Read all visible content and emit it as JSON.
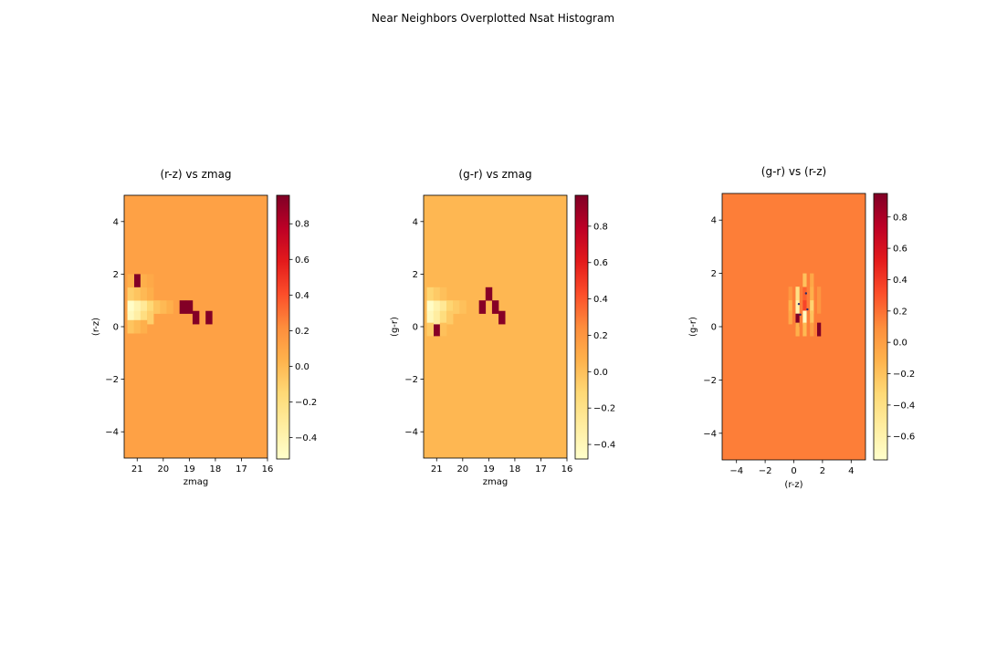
{
  "figure": {
    "suptitle": "Near Neighbors Overplotted Nsat Histogram"
  },
  "chart_data": [
    {
      "type": "heatmap",
      "title": "(r-z) vs zmag",
      "xlabel": "zmag",
      "ylabel": "(r-z)",
      "xlim": [
        21.5,
        16
      ],
      "ylim": [
        -5,
        5
      ],
      "xticks": [
        21,
        20,
        19,
        18,
        17,
        16
      ],
      "yticks": [
        -4,
        -2,
        0,
        2,
        4
      ],
      "grid": false,
      "colormap": "YlOrRd",
      "colorbar": {
        "min": -0.52,
        "max": 0.96,
        "ticks": [
          -0.4,
          -0.2,
          0.0,
          0.2,
          0.4,
          0.6,
          0.8
        ]
      },
      "background_value": 0.12,
      "cells": [
        {
          "x": 21.0,
          "y": 1.75,
          "v": 0.95
        },
        {
          "x": 19.25,
          "y": 0.75,
          "v": 0.95
        },
        {
          "x": 19.0,
          "y": 0.75,
          "v": 0.95
        },
        {
          "x": 18.75,
          "y": 0.35,
          "v": 0.95
        },
        {
          "x": 18.25,
          "y": 0.35,
          "v": 0.95
        },
        {
          "x": 21.25,
          "y": 0.75,
          "v": -0.5
        },
        {
          "x": 21.25,
          "y": 0.35,
          "v": -0.45
        },
        {
          "x": 21.0,
          "y": 0.75,
          "v": -0.4
        },
        {
          "x": 21.0,
          "y": 0.35,
          "v": -0.35
        },
        {
          "x": 20.75,
          "y": 0.75,
          "v": -0.3
        },
        {
          "x": 20.75,
          "y": 0.35,
          "v": -0.2
        },
        {
          "x": 20.5,
          "y": 0.75,
          "v": -0.15
        },
        {
          "x": 20.5,
          "y": 0.35,
          "v": -0.1
        },
        {
          "x": 20.25,
          "y": 0.75,
          "v": -0.05
        },
        {
          "x": 20.0,
          "y": 0.75,
          "v": 0.0
        },
        {
          "x": 19.75,
          "y": 0.75,
          "v": 0.05
        },
        {
          "x": 21.25,
          "y": 1.25,
          "v": -0.1
        },
        {
          "x": 21.0,
          "y": 1.25,
          "v": -0.05
        },
        {
          "x": 20.75,
          "y": 1.25,
          "v": 0.0
        },
        {
          "x": 20.5,
          "y": 1.25,
          "v": 0.05
        },
        {
          "x": 21.25,
          "y": 0.0,
          "v": -0.05
        },
        {
          "x": 21.0,
          "y": 0.0,
          "v": 0.0
        },
        {
          "x": 20.75,
          "y": 0.0,
          "v": 0.05
        },
        {
          "x": 21.25,
          "y": 1.75,
          "v": 0.05
        },
        {
          "x": 20.75,
          "y": 1.75,
          "v": 0.05
        },
        {
          "x": 20.5,
          "y": 1.75,
          "v": 0.08
        }
      ]
    },
    {
      "type": "heatmap",
      "title": "(g-r) vs zmag",
      "xlabel": "zmag",
      "ylabel": "(g-r)",
      "xlim": [
        21.5,
        16
      ],
      "ylim": [
        -5,
        5
      ],
      "xticks": [
        21,
        20,
        19,
        18,
        17,
        16
      ],
      "yticks": [
        -4,
        -2,
        0,
        2,
        4
      ],
      "grid": false,
      "colormap": "YlOrRd",
      "colorbar": {
        "min": -0.48,
        "max": 0.97,
        "ticks": [
          -0.4,
          -0.2,
          0.0,
          0.2,
          0.4,
          0.6,
          0.8
        ]
      },
      "background_value": 0.04,
      "cells": [
        {
          "x": 19.0,
          "y": 1.25,
          "v": 0.95
        },
        {
          "x": 19.25,
          "y": 0.75,
          "v": 0.95
        },
        {
          "x": 18.75,
          "y": 0.75,
          "v": 0.95
        },
        {
          "x": 18.5,
          "y": 0.35,
          "v": 0.95
        },
        {
          "x": 21.0,
          "y": -0.1,
          "v": 0.95
        },
        {
          "x": 21.25,
          "y": 0.75,
          "v": -0.45
        },
        {
          "x": 21.25,
          "y": 0.35,
          "v": -0.4
        },
        {
          "x": 21.0,
          "y": 0.75,
          "v": -0.35
        },
        {
          "x": 21.0,
          "y": 0.35,
          "v": -0.3
        },
        {
          "x": 20.75,
          "y": 0.75,
          "v": -0.25
        },
        {
          "x": 20.75,
          "y": 0.35,
          "v": -0.15
        },
        {
          "x": 20.5,
          "y": 0.75,
          "v": -0.1
        },
        {
          "x": 20.5,
          "y": 0.35,
          "v": -0.05
        },
        {
          "x": 20.25,
          "y": 0.75,
          "v": -0.05
        },
        {
          "x": 20.0,
          "y": 0.75,
          "v": 0.0
        },
        {
          "x": 21.25,
          "y": 1.25,
          "v": -0.1
        },
        {
          "x": 21.0,
          "y": 1.25,
          "v": -0.05
        },
        {
          "x": 20.75,
          "y": 1.25,
          "v": 0.0
        },
        {
          "x": 21.25,
          "y": -0.1,
          "v": -0.05
        },
        {
          "x": 20.75,
          "y": -0.1,
          "v": 0.0
        }
      ]
    },
    {
      "type": "heatmap",
      "title": "(g-r) vs (r-z)",
      "xlabel": "(r-z)",
      "ylabel": "(g-r)",
      "xlim": [
        -5,
        5
      ],
      "ylim": [
        -5,
        5
      ],
      "xticks": [
        -4,
        -2,
        0,
        2,
        4
      ],
      "yticks": [
        -4,
        -2,
        0,
        2,
        4
      ],
      "grid": false,
      "colormap": "YlOrRd",
      "colorbar": {
        "min": -0.75,
        "max": 0.95,
        "ticks": [
          -0.6,
          -0.4,
          -0.2,
          0.0,
          0.2,
          0.4,
          0.6,
          0.8
        ]
      },
      "background_value": 0.15,
      "cells": [
        {
          "x": 0.25,
          "y": 0.25,
          "v": 0.95
        },
        {
          "x": 1.75,
          "y": -0.1,
          "v": 0.95
        },
        {
          "x": 0.75,
          "y": 0.75,
          "v": 0.35
        },
        {
          "x": 0.75,
          "y": 1.25,
          "v": 0.25
        },
        {
          "x": 0.25,
          "y": 0.75,
          "v": -0.6
        },
        {
          "x": 0.75,
          "y": 0.35,
          "v": -0.7
        },
        {
          "x": 1.25,
          "y": 0.75,
          "v": -0.3
        },
        {
          "x": 1.25,
          "y": 0.35,
          "v": -0.2
        },
        {
          "x": 0.25,
          "y": 1.25,
          "v": -0.4
        },
        {
          "x": 1.25,
          "y": 1.25,
          "v": -0.1
        },
        {
          "x": 0.75,
          "y": 1.75,
          "v": -0.2
        },
        {
          "x": 1.25,
          "y": 1.75,
          "v": -0.05
        },
        {
          "x": -0.25,
          "y": 0.75,
          "v": -0.1
        },
        {
          "x": -0.25,
          "y": 0.35,
          "v": -0.05
        },
        {
          "x": 0.25,
          "y": -0.1,
          "v": -0.1
        },
        {
          "x": 0.75,
          "y": -0.1,
          "v": -0.15
        },
        {
          "x": 1.25,
          "y": -0.1,
          "v": 0.0
        },
        {
          "x": 1.75,
          "y": 0.75,
          "v": 0.05
        },
        {
          "x": 1.75,
          "y": 1.25,
          "v": 0.05
        },
        {
          "x": -0.25,
          "y": 1.25,
          "v": 0.05
        }
      ],
      "points": [
        {
          "x": 0.85,
          "y": 1.25
        },
        {
          "x": 0.35,
          "y": 0.85
        },
        {
          "x": 0.95,
          "y": 0.65
        },
        {
          "x": 0.45,
          "y": 0.45
        }
      ]
    }
  ]
}
